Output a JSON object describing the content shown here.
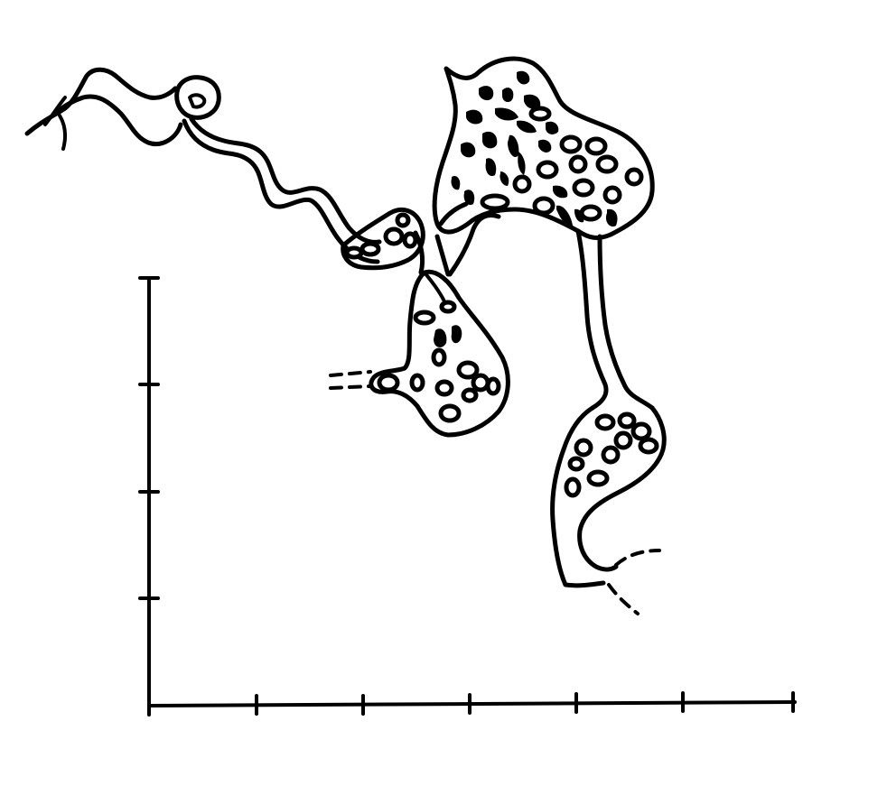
{
  "figure": {
    "line_color": "#000000",
    "background_color": "#ffffff",
    "x_axis_tick_count": 7,
    "y_axis_tick_count": 4
  }
}
